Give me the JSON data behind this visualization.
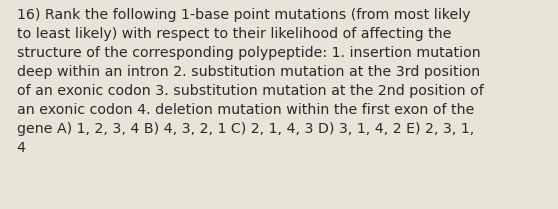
{
  "lines": [
    "16) Rank the following 1-base point mutations (from most likely",
    "to least likely) with respect to their likelihood of affecting the",
    "structure of the corresponding polypeptide: 1. insertion mutation",
    "deep within an intron 2. substitution mutation at the 3rd position",
    "of an exonic codon 3. substitution mutation at the 2nd position of",
    "an exonic codon 4. deletion mutation within the first exon of the",
    "gene A) 1, 2, 3, 4 B) 4, 3, 2, 1 C) 2, 1, 4, 3 D) 3, 1, 4, 2 E) 2, 3, 1,",
    "4"
  ],
  "background_color": "#e8e4d8",
  "text_color": "#2a2a2a",
  "font_size": 10.2,
  "fig_width": 5.58,
  "fig_height": 2.09,
  "dpi": 100
}
